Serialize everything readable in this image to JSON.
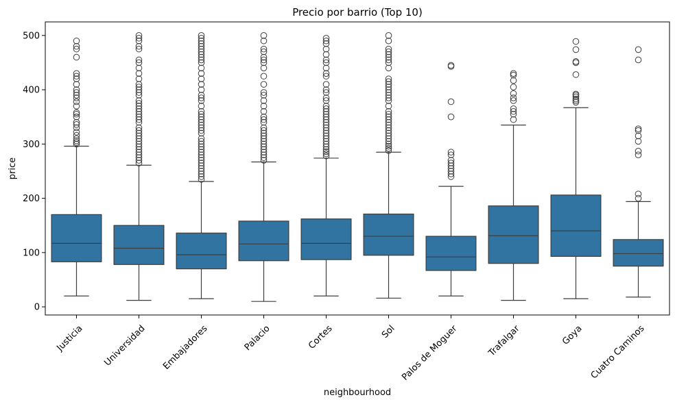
{
  "chart_data": {
    "type": "box",
    "title": "Precio por barrio (Top 10)",
    "xlabel": "neighbourhood",
    "ylabel": "price",
    "ylim": [
      -15,
      525
    ],
    "yticks": [
      0,
      100,
      200,
      300,
      400,
      500
    ],
    "grid": false,
    "box_color": "#3274a1",
    "line_color": "#3d3d3d",
    "categories": [
      "Justicia",
      "Universidad",
      "Embajadores",
      "Palacio",
      "Cortes",
      "Sol",
      "Palos de Moguer",
      "Trafalgar",
      "Goya",
      "Cuatro Caminos"
    ],
    "boxes": [
      {
        "whislo": 20,
        "q1": 83,
        "med": 117,
        "q3": 170,
        "whishi": 296,
        "fliers": [
          300,
          303,
          306,
          310,
          316,
          322,
          330,
          336,
          340,
          350,
          355,
          358,
          370,
          378,
          385,
          390,
          395,
          400,
          410,
          420,
          425,
          430,
          460,
          475,
          480,
          490
        ]
      },
      {
        "whislo": 12,
        "q1": 78,
        "med": 108,
        "q3": 150,
        "whishi": 261,
        "fliers": [
          265,
          270,
          275,
          280,
          285,
          290,
          295,
          300,
          305,
          310,
          315,
          320,
          325,
          330,
          340,
          345,
          350,
          355,
          360,
          365,
          370,
          375,
          380,
          390,
          395,
          400,
          405,
          410,
          420,
          430,
          440,
          450,
          455,
          475,
          480,
          490,
          495,
          500
        ]
      },
      {
        "whislo": 15,
        "q1": 70,
        "med": 96,
        "q3": 136,
        "whishi": 231,
        "fliers": [
          235,
          240,
          245,
          250,
          255,
          260,
          265,
          270,
          275,
          280,
          285,
          290,
          295,
          300,
          305,
          310,
          320,
          325,
          330,
          335,
          340,
          345,
          350,
          355,
          360,
          370,
          380,
          385,
          390,
          400,
          410,
          420,
          430,
          440,
          450,
          455,
          460,
          465,
          470,
          475,
          480,
          485,
          490,
          495,
          500
        ]
      },
      {
        "whislo": 10,
        "q1": 85,
        "med": 116,
        "q3": 158,
        "whishi": 267,
        "fliers": [
          270,
          275,
          280,
          285,
          290,
          295,
          300,
          305,
          310,
          315,
          320,
          325,
          330,
          340,
          345,
          350,
          360,
          370,
          380,
          390,
          395,
          410,
          425,
          440,
          450,
          455,
          460,
          470,
          475,
          490,
          500
        ]
      },
      {
        "whislo": 20,
        "q1": 87,
        "med": 117,
        "q3": 162,
        "whishi": 274,
        "fliers": [
          278,
          282,
          286,
          290,
          295,
          300,
          305,
          310,
          315,
          320,
          325,
          330,
          335,
          340,
          345,
          350,
          355,
          360,
          365,
          370,
          380,
          385,
          395,
          400,
          410,
          425,
          430,
          440,
          450,
          455,
          465,
          475,
          485,
          490,
          495
        ]
      },
      {
        "whislo": 16,
        "q1": 95,
        "med": 130,
        "q3": 171,
        "whishi": 285,
        "fliers": [
          288,
          292,
          296,
          300,
          305,
          310,
          315,
          320,
          325,
          330,
          335,
          340,
          345,
          350,
          355,
          360,
          370,
          380,
          385,
          390,
          395,
          400,
          405,
          410,
          415,
          420,
          440,
          450,
          455,
          460,
          465,
          470,
          475,
          490,
          500
        ]
      },
      {
        "whislo": 20,
        "q1": 67,
        "med": 92,
        "q3": 130,
        "whishi": 222,
        "fliers": [
          240,
          245,
          250,
          255,
          260,
          265,
          270,
          280,
          285,
          350,
          378,
          443,
          445
        ]
      },
      {
        "whislo": 12,
        "q1": 80,
        "med": 131,
        "q3": 186,
        "whishi": 335,
        "fliers": [
          345,
          355,
          360,
          365,
          380,
          385,
          393,
          405,
          417,
          427,
          430
        ]
      },
      {
        "whislo": 15,
        "q1": 93,
        "med": 140,
        "q3": 206,
        "whishi": 367,
        "fliers": [
          377,
          380,
          383,
          387,
          390,
          392,
          428,
          450,
          452,
          474,
          489
        ]
      },
      {
        "whislo": 18,
        "q1": 75,
        "med": 98,
        "q3": 124,
        "whishi": 194,
        "fliers": [
          200,
          208,
          280,
          287,
          305,
          315,
          325,
          328,
          455,
          474
        ]
      }
    ]
  }
}
